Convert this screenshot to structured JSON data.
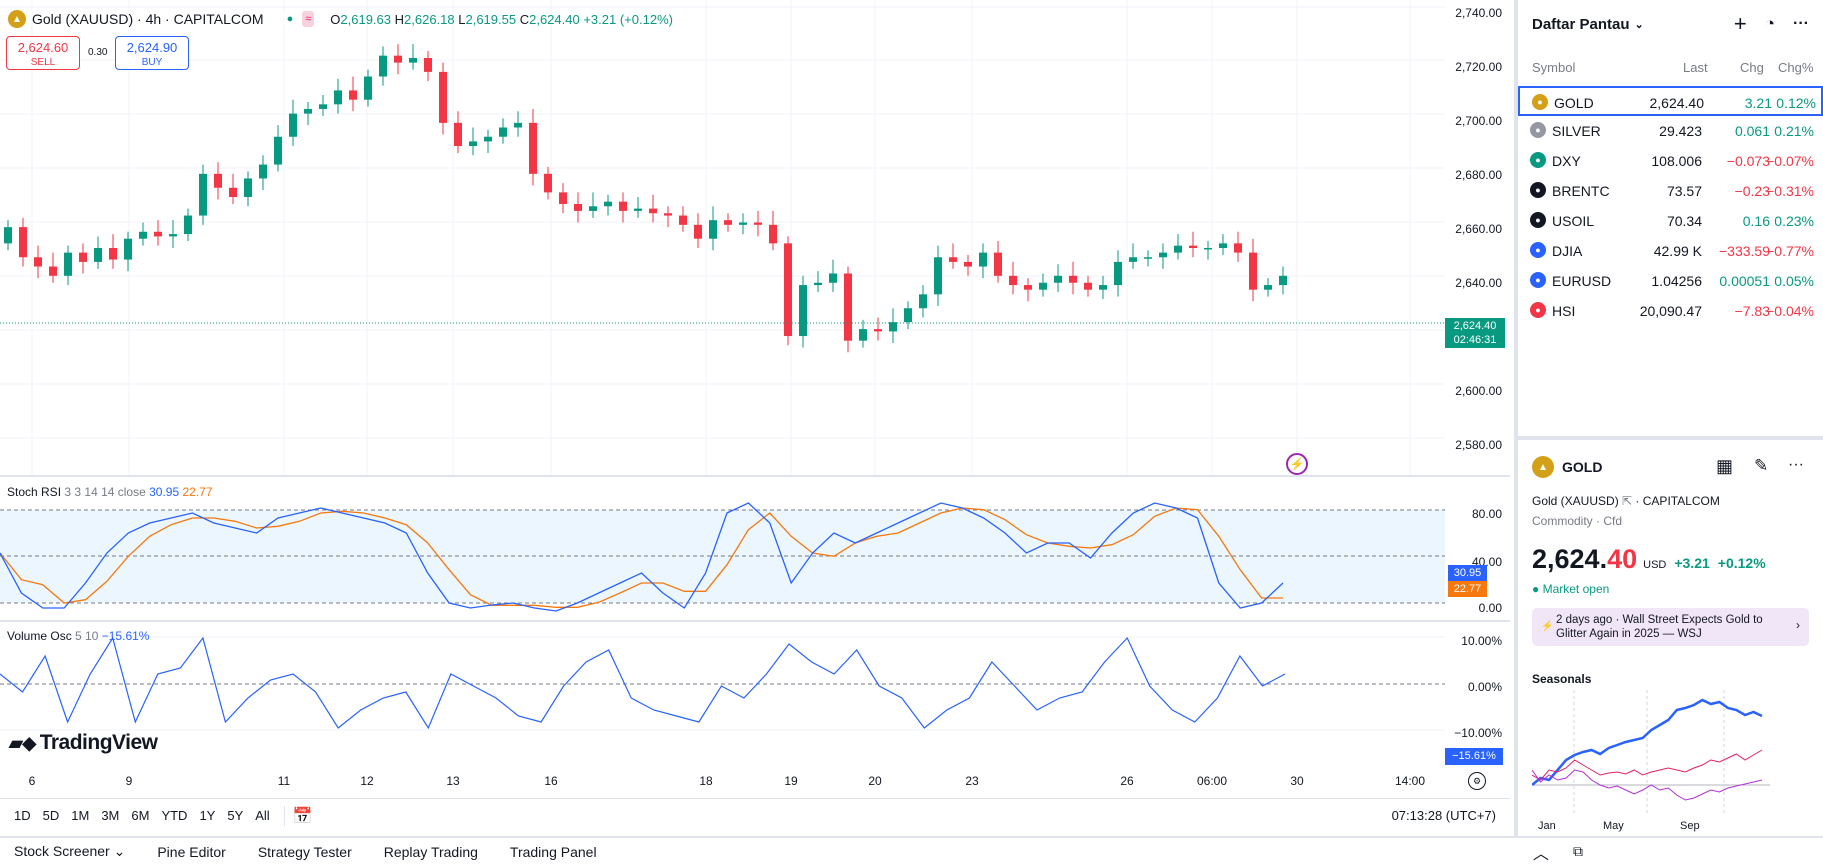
{
  "symbol": {
    "title": "Gold (XAUUSD) · 4h · CAPITALCOM",
    "ohlc": {
      "o_label": "O",
      "o": "2,619.63",
      "h_label": "H",
      "h": "2,626.18",
      "l_label": "L",
      "l": "2,619.55",
      "c_label": "C",
      "c": "2,624.40",
      "chg": "+3.21 (+0.12%)"
    },
    "sell_price": "2,624.60",
    "sell_label": "SELL",
    "spread": "0.30",
    "buy_price": "2,624.90",
    "buy_label": "BUY"
  },
  "price_axis": {
    "ticks": [
      "2,740.00",
      "2,720.00",
      "2,700.00",
      "2,680.00",
      "2,660.00",
      "2,640.00",
      "2,600.00",
      "2,580.00"
    ],
    "current_price": "2,624.40",
    "countdown": "02:46:31"
  },
  "rsi": {
    "name": "Stoch RSI",
    "params": "3 3 14 14 close",
    "k": "30.95",
    "d": "22.77",
    "ticks": [
      "80.00",
      "40.00",
      "0.00"
    ]
  },
  "osc": {
    "name": "Volume Osc",
    "params": "5 10",
    "value": "−15.61%",
    "ticks": [
      "10.00%",
      "0.00%",
      "−10.00%"
    ]
  },
  "logo": "TradingView",
  "time_axis": [
    "6",
    "9",
    "11",
    "12",
    "13",
    "16",
    "18",
    "19",
    "20",
    "23",
    "26",
    "06:00",
    "30",
    "14:00"
  ],
  "ranges": [
    "1D",
    "5D",
    "1M",
    "3M",
    "6M",
    "YTD",
    "1Y",
    "5Y",
    "All"
  ],
  "clock": "07:13:28 (UTC+7)",
  "footer_tabs": [
    "Stock Screener",
    "Pine Editor",
    "Strategy Tester",
    "Replay Trading",
    "Trading Panel"
  ],
  "watchlist": {
    "title": "Daftar Pantau",
    "columns": {
      "symbol": "Symbol",
      "last": "Last",
      "chg": "Chg",
      "chgp": "Chg%"
    },
    "rows": [
      {
        "sym": "GOLD",
        "last": "2,624.40",
        "chg": "3.21",
        "chgp": "0.12%",
        "dir": "up",
        "icon_color": "#d4a017"
      },
      {
        "sym": "SILVER",
        "last": "29.423",
        "chg": "0.061",
        "chgp": "0.21%",
        "dir": "up",
        "icon_color": "#9598a1"
      },
      {
        "sym": "DXY",
        "last": "108.006",
        "chg": "−0.073",
        "chgp": "−0.07%",
        "dir": "down",
        "icon_color": "#089981"
      },
      {
        "sym": "BRENTC",
        "last": "73.57",
        "chg": "−0.23",
        "chgp": "−0.31%",
        "dir": "down",
        "icon_color": "#131722"
      },
      {
        "sym": "USOIL",
        "last": "70.34",
        "chg": "0.16",
        "chgp": "0.23%",
        "dir": "up",
        "icon_color": "#131722"
      },
      {
        "sym": "DJIA",
        "last": "42.99 K",
        "chg": "−333.59",
        "chgp": "−0.77%",
        "dir": "down",
        "icon_color": "#2962ff"
      },
      {
        "sym": "EURUSD",
        "last": "1.04256",
        "chg": "0.00051",
        "chgp": "0.05%",
        "dir": "up",
        "icon_color": "#2962ff"
      },
      {
        "sym": "HSI",
        "last": "20,090.47",
        "chg": "−7.83",
        "chgp": "−0.04%",
        "dir": "down",
        "icon_color": "#f23645"
      }
    ]
  },
  "detail": {
    "symbol": "GOLD",
    "fullname": "Gold (XAUUSD)",
    "exchange": "CAPITALCOM",
    "category": "Commodity · Cfd",
    "price_main": "2,624.",
    "price_frac": "40",
    "currency": "USD",
    "change": "+3.21",
    "change_pct": "+0.12%",
    "market_status": "Market open",
    "news_time": "2 days ago",
    "news_text": "Wall Street Expects Gold to Glitter Again in 2025 — WSJ",
    "seasonals_title": "Seasonals",
    "season_axis": [
      "Jan",
      "May",
      "Sep"
    ]
  }
}
